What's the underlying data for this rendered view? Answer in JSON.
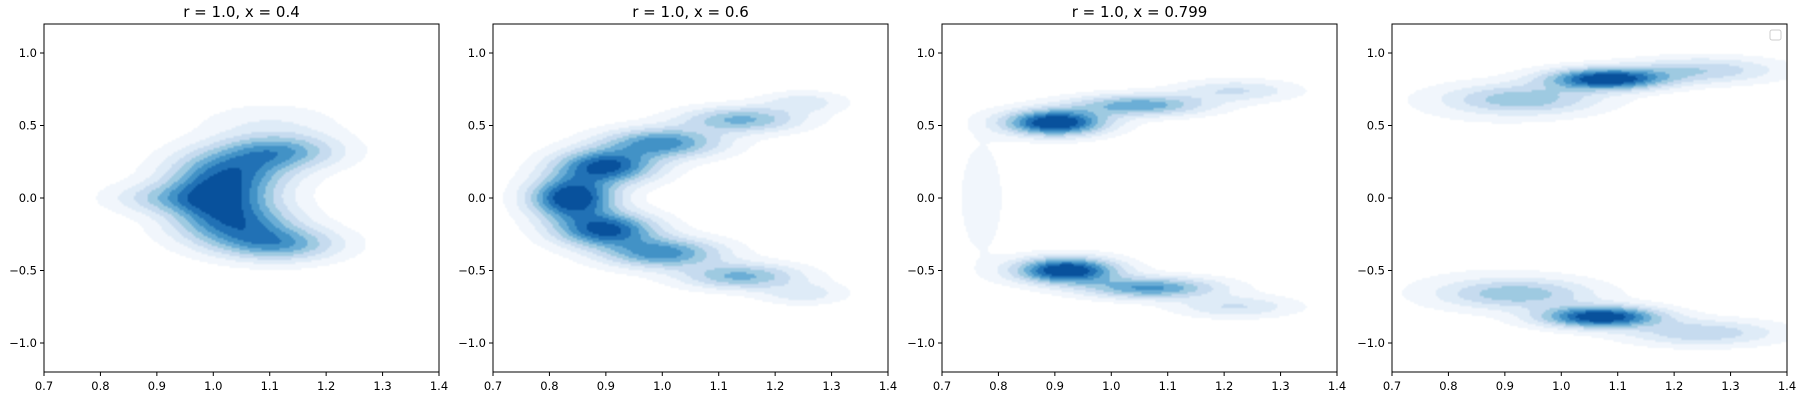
{
  "chart_data": [
    {
      "type": "density-contour",
      "title": "r = 1.0, x = 0.4",
      "xlim": [
        0.7,
        1.4
      ],
      "ylim": [
        -1.2,
        1.2
      ],
      "xticks": [
        0.7,
        0.8,
        0.9,
        1.0,
        1.1,
        1.2,
        1.3,
        1.4
      ],
      "yticks": [
        -1.0,
        -0.5,
        0.0,
        0.5,
        1.0
      ],
      "xtick_labels": [
        "0.7",
        "0.8",
        "0.9",
        "1.0",
        "1.1",
        "1.2",
        "1.3",
        "1.4"
      ],
      "ytick_labels": [
        "−1.0",
        "−0.5",
        "0.0",
        "0.5",
        "1.0"
      ],
      "colormap": "Blues",
      "density_peaks": [
        {
          "x": 1.1,
          "y": 0.5,
          "sx": 0.08,
          "sy": 0.1,
          "w": 0.2
        },
        {
          "x": 1.03,
          "y": 0.18,
          "sx": 0.07,
          "sy": 0.11,
          "w": 1.0
        },
        {
          "x": 1.0,
          "y": 0.0,
          "sx": 0.06,
          "sy": 0.1,
          "w": 0.95
        },
        {
          "x": 1.04,
          "y": -0.18,
          "sx": 0.07,
          "sy": 0.11,
          "w": 1.0
        },
        {
          "x": 1.12,
          "y": -0.32,
          "sx": 0.07,
          "sy": 0.08,
          "w": 0.75
        },
        {
          "x": 1.12,
          "y": 0.32,
          "sx": 0.07,
          "sy": 0.08,
          "w": 0.75
        },
        {
          "x": 0.9,
          "y": 0.0,
          "sx": 0.06,
          "sy": 0.07,
          "w": 0.35
        }
      ],
      "legend": false
    },
    {
      "type": "density-contour",
      "title": "r = 1.0, x = 0.6",
      "xlim": [
        0.7,
        1.4
      ],
      "ylim": [
        -1.2,
        1.2
      ],
      "xticks": [
        0.7,
        0.8,
        0.9,
        1.0,
        1.1,
        1.2,
        1.3,
        1.4
      ],
      "yticks": [
        -1.0,
        -0.5,
        0.0,
        0.5,
        1.0
      ],
      "xtick_labels": [
        "0.7",
        "0.8",
        "0.9",
        "1.0",
        "1.1",
        "1.2",
        "1.3",
        "1.4"
      ],
      "ytick_labels": [
        "−1.0",
        "−0.5",
        "0.0",
        "0.5",
        "1.0"
      ],
      "colormap": "Blues",
      "density_peaks": [
        {
          "x": 0.84,
          "y": 0.0,
          "sx": 0.05,
          "sy": 0.1,
          "w": 1.0
        },
        {
          "x": 0.9,
          "y": 0.22,
          "sx": 0.06,
          "sy": 0.08,
          "w": 0.85
        },
        {
          "x": 0.9,
          "y": -0.22,
          "sx": 0.06,
          "sy": 0.08,
          "w": 0.85
        },
        {
          "x": 1.0,
          "y": 0.38,
          "sx": 0.07,
          "sy": 0.07,
          "w": 0.65
        },
        {
          "x": 1.0,
          "y": -0.38,
          "sx": 0.07,
          "sy": 0.07,
          "w": 0.65
        },
        {
          "x": 1.14,
          "y": 0.54,
          "sx": 0.07,
          "sy": 0.06,
          "w": 0.5
        },
        {
          "x": 1.14,
          "y": -0.54,
          "sx": 0.07,
          "sy": 0.06,
          "w": 0.5
        },
        {
          "x": 1.25,
          "y": 0.66,
          "sx": 0.05,
          "sy": 0.05,
          "w": 0.2
        },
        {
          "x": 1.25,
          "y": -0.66,
          "sx": 0.05,
          "sy": 0.05,
          "w": 0.2
        }
      ],
      "legend": false
    },
    {
      "type": "density-contour",
      "title": "r = 1.0, x = 0.799",
      "xlim": [
        0.7,
        1.4
      ],
      "ylim": [
        -1.2,
        1.2
      ],
      "xticks": [
        0.7,
        0.8,
        0.9,
        1.0,
        1.1,
        1.2,
        1.3,
        1.4
      ],
      "yticks": [
        -1.0,
        -0.5,
        0.0,
        0.5,
        1.0
      ],
      "xtick_labels": [
        "0.7",
        "0.8",
        "0.9",
        "1.0",
        "1.1",
        "1.2",
        "1.3",
        "1.4"
      ],
      "ytick_labels": [
        "−1.0",
        "−0.5",
        "0.0",
        "0.5",
        "1.0"
      ],
      "colormap": "Blues",
      "density_peaks": [
        {
          "x": 0.9,
          "y": 0.52,
          "sx": 0.06,
          "sy": 0.06,
          "w": 1.0
        },
        {
          "x": 1.05,
          "y": 0.64,
          "sx": 0.08,
          "sy": 0.05,
          "w": 0.55
        },
        {
          "x": 1.22,
          "y": 0.74,
          "sx": 0.07,
          "sy": 0.05,
          "w": 0.25
        },
        {
          "x": 0.92,
          "y": -0.5,
          "sx": 0.06,
          "sy": 0.06,
          "w": 1.0
        },
        {
          "x": 1.07,
          "y": -0.62,
          "sx": 0.08,
          "sy": 0.05,
          "w": 0.6
        },
        {
          "x": 1.22,
          "y": -0.75,
          "sx": 0.07,
          "sy": 0.05,
          "w": 0.25
        },
        {
          "x": 0.77,
          "y": 0.0,
          "sx": 0.03,
          "sy": 0.3,
          "w": 0.1
        }
      ],
      "legend": false
    },
    {
      "type": "density-contour",
      "title": "",
      "xlim": [
        0.7,
        1.4
      ],
      "ylim": [
        -1.2,
        1.2
      ],
      "xticks": [
        0.7,
        0.8,
        0.9,
        1.0,
        1.1,
        1.2,
        1.3,
        1.4
      ],
      "yticks": [
        -1.0,
        -0.5,
        0.0,
        0.5,
        1.0
      ],
      "xtick_labels": [
        "0.7",
        "0.8",
        "0.9",
        "1.0",
        "1.1",
        "1.2",
        "1.3",
        "1.4"
      ],
      "ytick_labels": [
        "−1.0",
        "−0.5",
        "0.0",
        "0.5",
        "1.0"
      ],
      "colormap": "Blues",
      "density_peaks": [
        {
          "x": 1.08,
          "y": 0.82,
          "sx": 0.07,
          "sy": 0.05,
          "w": 1.0
        },
        {
          "x": 0.93,
          "y": 0.68,
          "sx": 0.09,
          "sy": 0.07,
          "w": 0.45
        },
        {
          "x": 1.25,
          "y": 0.88,
          "sx": 0.09,
          "sy": 0.06,
          "w": 0.35
        },
        {
          "x": 1.07,
          "y": -0.82,
          "sx": 0.07,
          "sy": 0.05,
          "w": 1.0
        },
        {
          "x": 0.92,
          "y": -0.66,
          "sx": 0.09,
          "sy": 0.07,
          "w": 0.45
        },
        {
          "x": 1.25,
          "y": -0.93,
          "sx": 0.09,
          "sy": 0.06,
          "w": 0.35
        },
        {
          "x": 0.82,
          "y": 0.0,
          "sx": 0.15,
          "sy": 0.5,
          "w": 0.05
        }
      ],
      "legend": true
    }
  ]
}
